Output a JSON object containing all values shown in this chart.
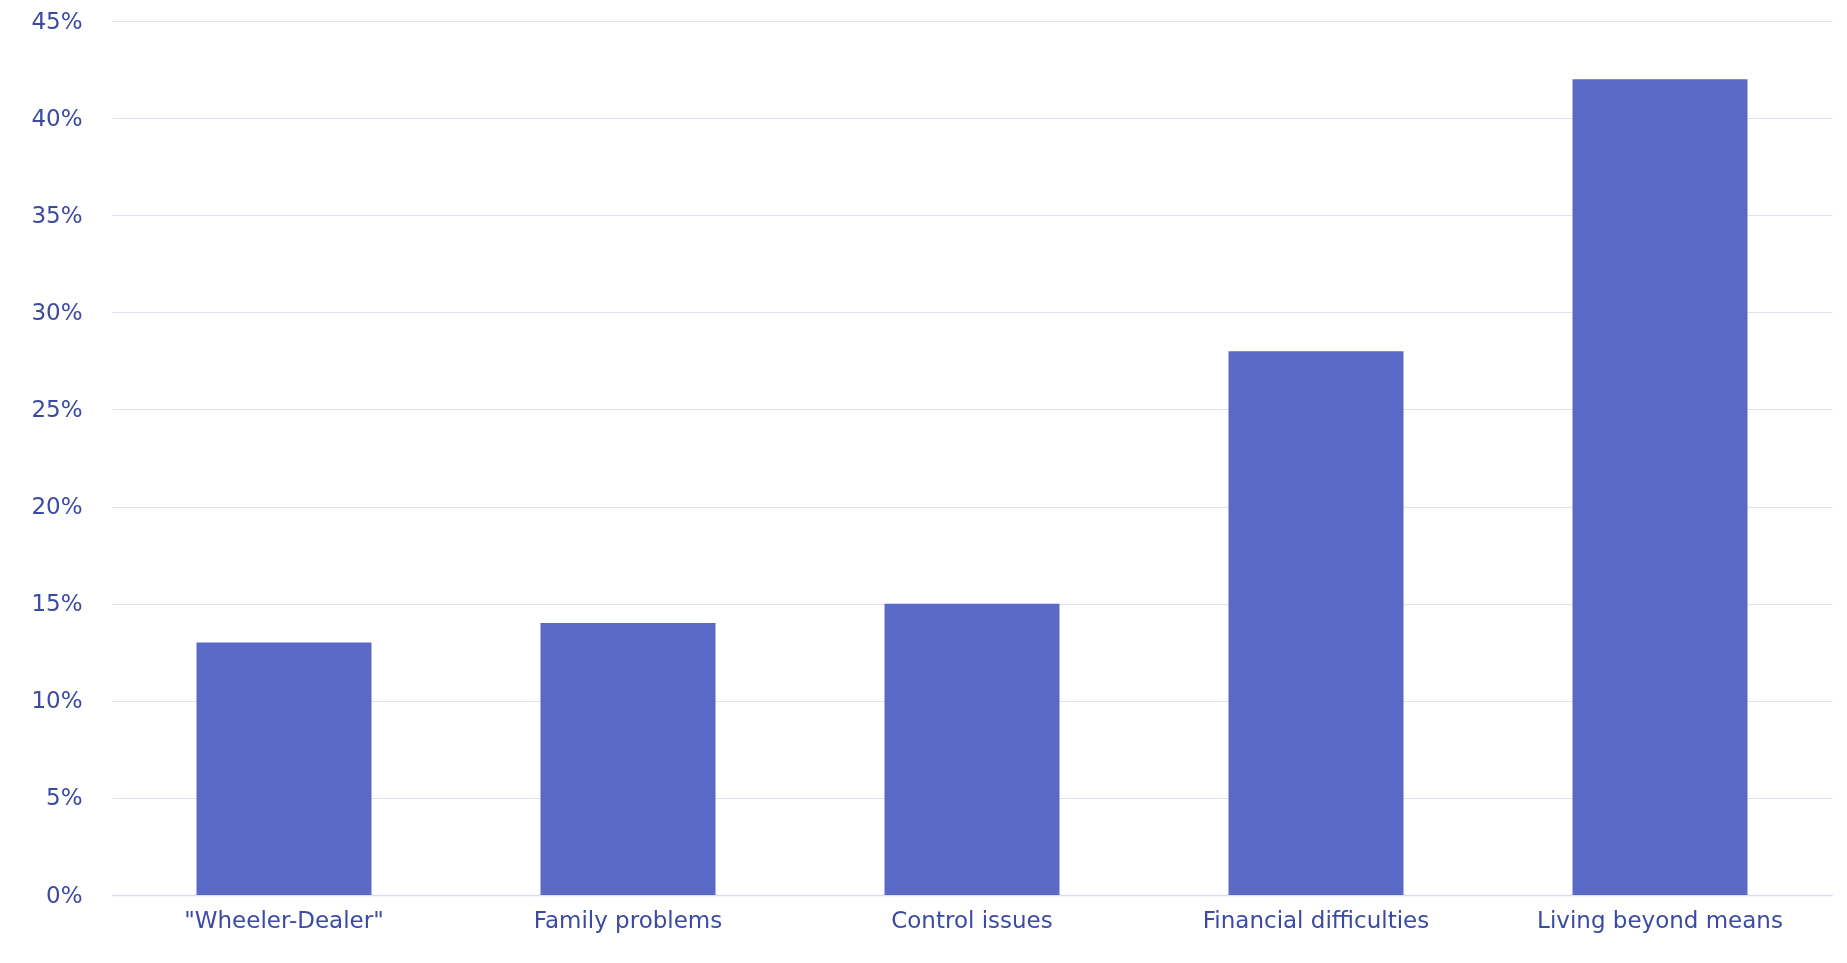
{
  "chart_data": {
    "type": "bar",
    "categories": [
      "\"Wheeler-Dealer\"",
      "Family problems",
      "Control issues",
      "Financial difficulties",
      "Living beyond means"
    ],
    "values": [
      13,
      14,
      15,
      28,
      42
    ],
    "color": "#5a69c6",
    "ylim": [
      0,
      45
    ],
    "yticks": [
      {
        "value": 0,
        "label": "0%"
      },
      {
        "value": 5,
        "label": "5%"
      },
      {
        "value": 10,
        "label": "10%"
      },
      {
        "value": 15,
        "label": "15%"
      },
      {
        "value": 20,
        "label": "20%"
      },
      {
        "value": 25,
        "label": "25%"
      },
      {
        "value": 30,
        "label": "30%"
      },
      {
        "value": 35,
        "label": "35%"
      },
      {
        "value": 40,
        "label": "40%"
      },
      {
        "value": 45,
        "label": "45%"
      }
    ],
    "grid": true
  }
}
